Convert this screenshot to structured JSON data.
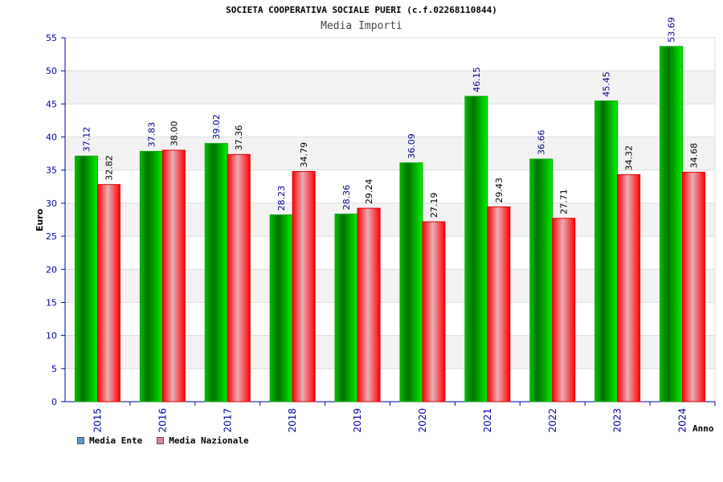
{
  "chart_data": {
    "type": "bar",
    "title": "SOCIETA COOPERATIVA SOCIALE PUERI (c.f.02268110844)",
    "subtitle": "Media Importi",
    "xlabel": "Anno",
    "ylabel": "Euro",
    "ylim": [
      0,
      55
    ],
    "yticks": [
      0,
      5,
      10,
      15,
      20,
      25,
      30,
      35,
      40,
      45,
      50,
      55
    ],
    "categories": [
      "2015",
      "2016",
      "2017",
      "2018",
      "2019",
      "2020",
      "2021",
      "2022",
      "2023",
      "2024"
    ],
    "series": [
      {
        "name": "Media Ente",
        "values": [
          37.12,
          37.83,
          39.02,
          28.23,
          28.36,
          36.09,
          46.15,
          36.66,
          45.45,
          53.69
        ],
        "labels": [
          "37.12",
          "37.83",
          "39.02",
          "28.23",
          "28.36",
          "36.09",
          "46.15",
          "36.66",
          "45.45",
          "53.69"
        ]
      },
      {
        "name": "Media Nazionale",
        "values": [
          32.82,
          38.0,
          37.36,
          34.79,
          29.24,
          27.19,
          29.43,
          27.71,
          34.32,
          34.68
        ],
        "labels": [
          "32.82",
          "38.00",
          "37.36",
          "34.79",
          "29.24",
          "27.19",
          "29.43",
          "27.71",
          "34.32",
          "34.68"
        ]
      }
    ],
    "legend_position": "bottom-left",
    "grid": true,
    "legend_colors": [
      "#5b9bd5",
      "#e080a8"
    ]
  }
}
